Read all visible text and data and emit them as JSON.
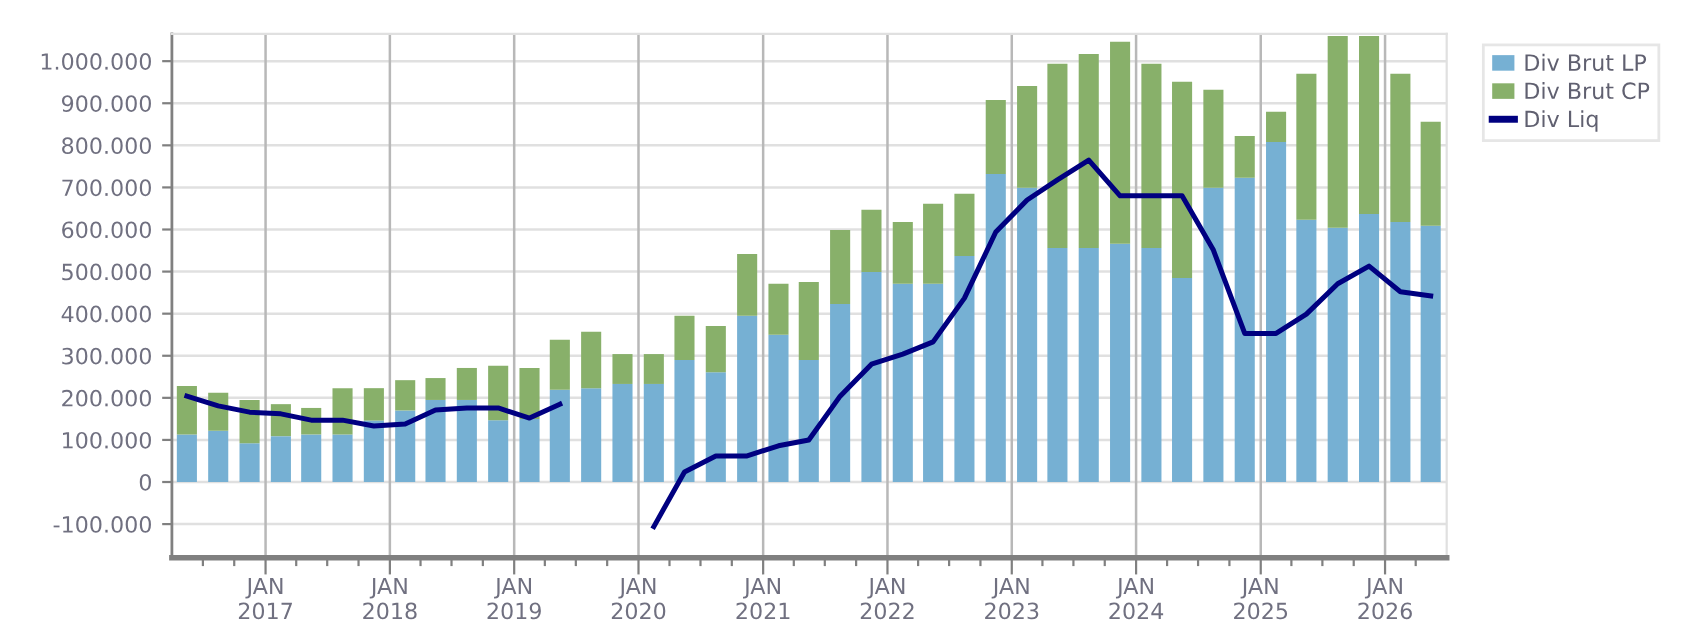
{
  "chart_data": {
    "type": "bar",
    "stacked": true,
    "x": [
      "2016-05-15",
      "2016-08-15",
      "2016-11-15",
      "2017-02-15",
      "2017-05-15",
      "2017-08-15",
      "2017-11-15",
      "2018-02-15",
      "2018-05-15",
      "2018-08-15",
      "2018-11-15",
      "2019-02-15",
      "2019-05-15",
      "2019-08-15",
      "2019-11-15",
      "2020-02-15",
      "2020-05-15",
      "2020-08-15",
      "2020-11-15",
      "2021-02-15",
      "2021-05-15",
      "2021-08-15",
      "2021-11-15",
      "2022-02-15",
      "2022-05-15",
      "2022-08-15",
      "2022-11-15",
      "2023-02-15",
      "2023-05-15",
      "2023-08-15",
      "2023-11-15",
      "2024-02-15",
      "2024-05-15",
      "2024-08-15",
      "2024-11-15",
      "2025-02-15",
      "2025-05-15",
      "2025-08-15",
      "2025-11-15",
      "2026-02-15",
      "2026-05-15"
    ],
    "series": [
      {
        "name": "Div Brut LP",
        "color": "#76b0d3",
        "values": [
          113000,
          122000,
          92000,
          109000,
          113000,
          113000,
          146000,
          170000,
          195000,
          195000,
          147000,
          150000,
          219000,
          223000,
          233000,
          233000,
          290000,
          261000,
          395000,
          350000,
          290000,
          423000,
          499000,
          471000,
          471000,
          537000,
          732000,
          699000,
          556000,
          556000,
          566000,
          556000,
          485000,
          699000,
          723000,
          808000,
          623000,
          604000,
          637000,
          618000,
          609000
        ]
      },
      {
        "name": "Div Brut CP",
        "color": "#88b06a",
        "values": [
          115000,
          90000,
          103000,
          76000,
          63000,
          110000,
          77000,
          72000,
          52000,
          76000,
          129000,
          121000,
          119000,
          134000,
          71000,
          71000,
          105000,
          110000,
          147000,
          121000,
          185000,
          176000,
          148000,
          147000,
          190000,
          148000,
          176000,
          242000,
          438000,
          461000,
          480000,
          438000,
          466000,
          233000,
          99000,
          72000,
          347000,
          456000,
          423000,
          352000,
          247000
        ]
      },
      {
        "name": "Div Liq",
        "type": "line",
        "color": "#000080",
        "values": [
          204000,
          181000,
          166000,
          162000,
          147000,
          147000,
          133000,
          138000,
          171000,
          176000,
          176000,
          152000,
          185000,
          null,
          null,
          -106000,
          24000,
          62000,
          62000,
          86000,
          100000,
          204000,
          280000,
          304000,
          333000,
          437000,
          594000,
          670000,
          718000,
          765000,
          680000,
          680000,
          680000,
          551000,
          353000,
          353000,
          399000,
          471000,
          513000,
          452000,
          442000
        ]
      }
    ],
    "xlim": [
      "2016-04-01",
      "2026-07-01"
    ],
    "xticks": [
      {
        "value": "2016-07-01",
        "label": null
      },
      {
        "value": "2016-10-01",
        "label": null
      },
      {
        "value": "2017-01-01",
        "label": "JAN\n2017"
      },
      {
        "value": "2017-04-01",
        "label": null
      },
      {
        "value": "2017-07-01",
        "label": null
      },
      {
        "value": "2017-10-01",
        "label": null
      },
      {
        "value": "2018-01-01",
        "label": "JAN\n2018"
      },
      {
        "value": "2018-04-01",
        "label": null
      },
      {
        "value": "2018-07-01",
        "label": null
      },
      {
        "value": "2018-10-01",
        "label": null
      },
      {
        "value": "2019-01-01",
        "label": "JAN\n2019"
      },
      {
        "value": "2019-04-01",
        "label": null
      },
      {
        "value": "2019-07-01",
        "label": null
      },
      {
        "value": "2019-10-01",
        "label": null
      },
      {
        "value": "2020-01-01",
        "label": "JAN\n2020"
      },
      {
        "value": "2020-04-01",
        "label": null
      },
      {
        "value": "2020-07-01",
        "label": null
      },
      {
        "value": "2020-10-01",
        "label": null
      },
      {
        "value": "2021-01-01",
        "label": "JAN\n2021"
      },
      {
        "value": "2021-04-01",
        "label": null
      },
      {
        "value": "2021-07-01",
        "label": null
      },
      {
        "value": "2021-10-01",
        "label": null
      },
      {
        "value": "2022-01-01",
        "label": "JAN\n2022"
      },
      {
        "value": "2022-04-01",
        "label": null
      },
      {
        "value": "2022-07-01",
        "label": null
      },
      {
        "value": "2022-10-01",
        "label": null
      },
      {
        "value": "2023-01-01",
        "label": "JAN\n2023"
      },
      {
        "value": "2023-04-01",
        "label": null
      },
      {
        "value": "2023-07-01",
        "label": null
      },
      {
        "value": "2023-10-01",
        "label": null
      },
      {
        "value": "2024-01-01",
        "label": "JAN\n2024"
      },
      {
        "value": "2024-04-01",
        "label": null
      },
      {
        "value": "2024-07-01",
        "label": null
      },
      {
        "value": "2024-10-01",
        "label": null
      },
      {
        "value": "2025-01-01",
        "label": "JAN\n2025"
      },
      {
        "value": "2025-04-01",
        "label": null
      },
      {
        "value": "2025-07-01",
        "label": null
      },
      {
        "value": "2025-10-01",
        "label": null
      },
      {
        "value": "2026-01-01",
        "label": "JAN\n2026"
      },
      {
        "value": "2026-04-01",
        "label": null
      }
    ],
    "ylim": [
      -180000,
      1065000
    ],
    "yticks": [
      {
        "value": -100000,
        "label": "-100.000"
      },
      0,
      {
        "value": 100000,
        "label": "100.000"
      },
      {
        "value": 200000,
        "label": "200.000"
      },
      {
        "value": 300000,
        "label": "300.000"
      },
      {
        "value": 400000,
        "label": "400.000"
      },
      {
        "value": 500000,
        "label": "500.000"
      },
      {
        "value": 600000,
        "label": "600.000"
      },
      {
        "value": 700000,
        "label": "700.000"
      },
      {
        "value": 800000,
        "label": "800.000"
      },
      {
        "value": 900000,
        "label": "900.000"
      },
      {
        "value": 1000000,
        "label": "1.000.000"
      }
    ],
    "grid": true,
    "legend": "top right",
    "marker": "none",
    "line_style": "solid"
  }
}
